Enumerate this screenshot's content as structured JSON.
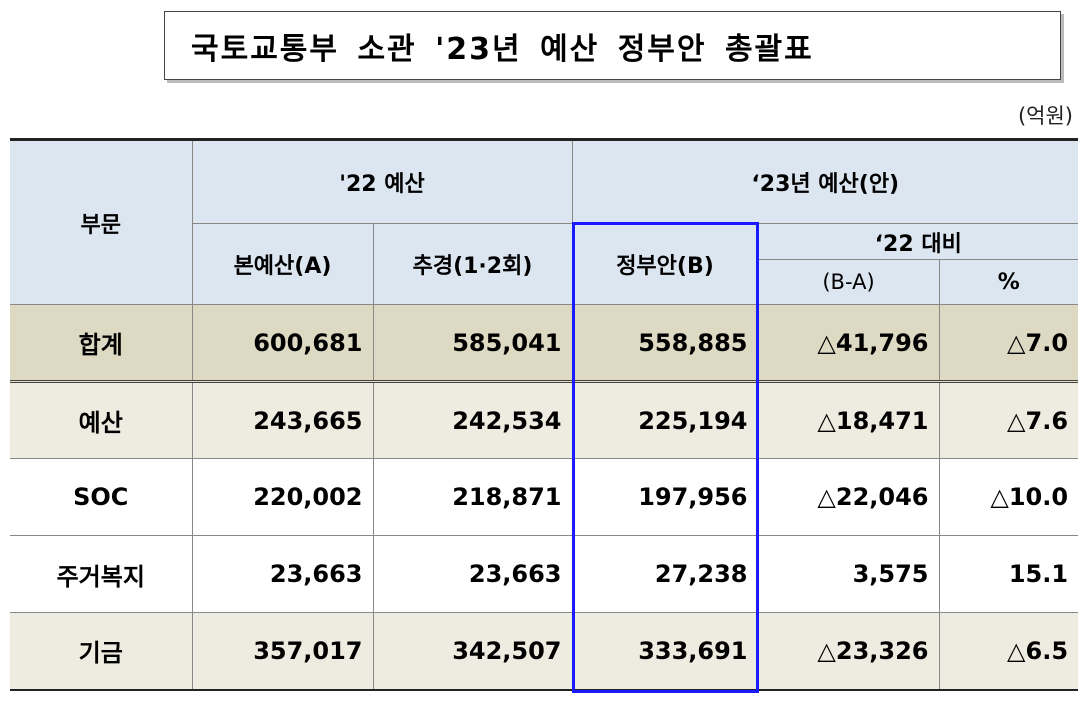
{
  "title": "국토교통부 소관 '23년 예산 정부안 총괄표",
  "unit": "(억원)",
  "header": {
    "category": "부문",
    "budget22": "'22 예산",
    "budget23": "‘23년 예산(안)",
    "base": "본예산(A)",
    "supplementary": "추경(1·2회)",
    "gov_proposal": "정부안(B)",
    "vs22": "‘22 대비",
    "diff": "(B-A)",
    "pct": "%"
  },
  "rows": [
    {
      "name": "합계",
      "base": "600,681",
      "supp": "585,041",
      "gov": "558,885",
      "diff": "△41,796",
      "pct": "△7.0"
    },
    {
      "name": "예산",
      "base": "243,665",
      "supp": "242,534",
      "gov": "225,194",
      "diff": "△18,471",
      "pct": "△7.6"
    },
    {
      "name": "SOC",
      "base": "220,002",
      "supp": "218,871",
      "gov": "197,956",
      "diff": "△22,046",
      "pct": "△10.0"
    },
    {
      "name": "주거복지",
      "base": "23,663",
      "supp": "23,663",
      "gov": "27,238",
      "diff": "3,575",
      "pct": "15.1"
    },
    {
      "name": "기금",
      "base": "357,017",
      "supp": "342,507",
      "gov": "333,691",
      "diff": "△23,326",
      "pct": "△6.5"
    }
  ],
  "colors": {
    "header_bg": "#dce6f1",
    "total_bg": "#ddd9c3",
    "row_bg": "#eeece1",
    "highlight_border": "#1a1aff"
  }
}
